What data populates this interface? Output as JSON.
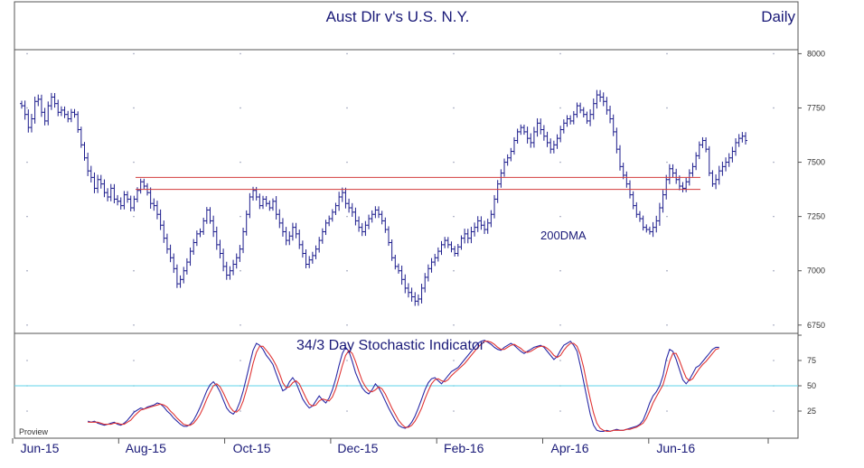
{
  "header": {
    "title": "Aust Dlr v's U.S. N.Y.",
    "period": "Daily"
  },
  "watermark": "Proview",
  "colors": {
    "frame": "#555555",
    "title_text": "#1a1a78",
    "bars": "#1c1c8c",
    "support_line": "#d23c3c",
    "stoch_k": "#2a2aa6",
    "stoch_d": "#e03535",
    "midline": "#5fd3e8",
    "tick_text": "#333333"
  },
  "chart_data": [
    {
      "type": "bar",
      "description_label": "Price (OHLC)",
      "x_tick_labels": [
        "Jun-15",
        "Aug-15",
        "Oct-15",
        "Dec-15",
        "Feb-16",
        "Apr-16",
        "Jun-16"
      ],
      "y_ticks": [
        6750,
        7000,
        7250,
        7500,
        7750,
        8000
      ],
      "ylim": [
        6720,
        8010
      ],
      "annotations": [
        {
          "text": "200DMA"
        }
      ],
      "horizontal_lines": [
        7430,
        7375
      ],
      "series": [
        {
          "values": [
            7760,
            7720,
            7660,
            7700,
            7780,
            7790,
            7730,
            7690,
            7760,
            7800,
            7770,
            7730,
            7740,
            7720,
            7700,
            7730,
            7720,
            7650,
            7580,
            7520,
            7460,
            7430,
            7380,
            7420,
            7400,
            7360,
            7340,
            7380,
            7330,
            7320,
            7300,
            7350,
            7330,
            7290,
            7330,
            7370,
            7410,
            7390,
            7360,
            7310,
            7300,
            7260,
            7210,
            7150,
            7100,
            7060,
            7010,
            6940,
            6960,
            7000,
            7040,
            7090,
            7130,
            7170,
            7180,
            7230,
            7280,
            7230,
            7180,
            7120,
            7080,
            7020,
            6980,
            7000,
            7030,
            7060,
            7100,
            7180,
            7260,
            7340,
            7370,
            7340,
            7300,
            7330,
            7310,
            7290,
            7320,
            7260,
            7220,
            7180,
            7140,
            7160,
            7200,
            7170,
            7120,
            7080,
            7030,
            7050,
            7070,
            7100,
            7140,
            7180,
            7220,
            7240,
            7270,
            7300,
            7340,
            7360,
            7310,
            7290,
            7270,
            7230,
            7200,
            7180,
            7210,
            7240,
            7260,
            7280,
            7260,
            7230,
            7190,
            7130,
            7060,
            7020,
            7000,
            6960,
            6920,
            6900,
            6880,
            6860,
            6870,
            6920,
            6970,
            7010,
            7040,
            7060,
            7090,
            7120,
            7140,
            7120,
            7100,
            7080,
            7110,
            7150,
            7170,
            7150,
            7180,
            7200,
            7230,
            7210,
            7190,
            7220,
            7260,
            7330,
            7400,
            7450,
            7500,
            7520,
            7550,
            7600,
            7640,
            7660,
            7640,
            7610,
            7590,
            7640,
            7680,
            7650,
            7620,
            7590,
            7560,
            7580,
            7610,
            7650,
            7680,
            7700,
            7690,
            7720,
            7760,
            7740,
            7720,
            7690,
            7720,
            7770,
            7810,
            7800,
            7780,
            7740,
            7700,
            7640,
            7560,
            7480,
            7440,
            7400,
            7350,
            7300,
            7260,
            7240,
            7200,
            7190,
            7180,
            7200,
            7230,
            7290,
            7350,
            7420,
            7470,
            7450,
            7420,
            7390,
            7380,
            7410,
            7450,
            7480,
            7530,
            7580,
            7600,
            7560,
            7450,
            7400,
            7420,
            7460,
            7480,
            7500,
            7520,
            7550,
            7590,
            7610,
            7620,
            7600
          ]
        }
      ]
    },
    {
      "type": "line",
      "title": "34/3 Day Stochastic Indicator",
      "y_ticks": [
        25,
        50,
        75
      ],
      "ylim": [
        0,
        100
      ],
      "reference_line": 50,
      "series": [
        {
          "values": [
            15,
            14,
            15,
            13,
            12,
            11,
            12,
            13,
            14,
            12,
            11,
            13,
            16,
            20,
            24,
            26,
            28,
            27,
            29,
            30,
            31,
            33,
            32,
            29,
            25,
            22,
            18,
            15,
            12,
            10,
            10,
            12,
            16,
            22,
            29,
            37,
            45,
            51,
            54,
            50,
            44,
            36,
            28,
            24,
            22,
            26,
            34,
            45,
            58,
            72,
            85,
            92,
            90,
            86,
            80,
            76,
            71,
            62,
            53,
            45,
            47,
            54,
            58,
            53,
            45,
            37,
            32,
            28,
            30,
            35,
            40,
            36,
            33,
            38,
            46,
            57,
            70,
            82,
            88,
            84,
            74,
            63,
            55,
            48,
            44,
            42,
            46,
            52,
            48,
            42,
            35,
            28,
            22,
            16,
            11,
            9,
            8,
            10,
            14,
            20,
            28,
            37,
            46,
            53,
            57,
            58,
            55,
            52,
            56,
            60,
            64,
            66,
            68,
            72,
            76,
            80,
            84,
            88,
            92,
            94,
            95,
            93,
            91,
            88,
            86,
            85,
            88,
            90,
            92,
            90,
            87,
            84,
            82,
            84,
            86,
            88,
            89,
            90,
            88,
            84,
            80,
            76,
            79,
            85,
            90,
            92,
            94,
            90,
            84,
            70,
            54,
            38,
            22,
            11,
            6,
            5,
            5,
            6,
            5,
            6,
            7,
            6,
            6,
            7,
            8,
            9,
            10,
            12,
            16,
            24,
            33,
            40,
            44,
            50,
            60,
            76,
            86,
            84,
            76,
            66,
            56,
            52,
            56,
            62,
            68,
            70,
            74,
            78,
            82,
            86,
            88,
            88
          ],
          "start_index": 20
        },
        {
          "values": [
            14,
            14,
            14,
            14,
            13,
            12,
            12,
            12,
            13,
            13,
            12,
            12,
            14,
            16,
            20,
            23,
            26,
            27,
            28,
            29,
            30,
            31,
            32,
            31,
            29,
            25,
            22,
            18,
            15,
            12,
            11,
            11,
            13,
            17,
            22,
            29,
            37,
            44,
            50,
            52,
            49,
            43,
            36,
            29,
            25,
            24,
            27,
            35,
            46,
            58,
            72,
            83,
            89,
            89,
            85,
            81,
            76,
            70,
            62,
            53,
            48,
            49,
            53,
            55,
            52,
            45,
            38,
            32,
            30,
            31,
            35,
            37,
            36,
            35,
            39,
            47,
            58,
            70,
            80,
            85,
            82,
            74,
            64,
            55,
            49,
            45,
            44,
            46,
            49,
            47,
            42,
            35,
            28,
            22,
            16,
            12,
            9,
            9,
            11,
            15,
            21,
            28,
            37,
            45,
            52,
            56,
            57,
            55,
            54,
            56,
            60,
            63,
            66,
            69,
            72,
            76,
            80,
            84,
            88,
            91,
            94,
            94,
            93,
            91,
            88,
            86,
            86,
            88,
            90,
            91,
            89,
            87,
            84,
            83,
            84,
            86,
            88,
            89,
            89,
            87,
            84,
            80,
            78,
            80,
            85,
            89,
            92,
            92,
            89,
            81,
            68,
            52,
            37,
            23,
            13,
            8,
            6,
            5,
            5,
            6,
            6,
            6,
            6,
            7,
            7,
            8,
            9,
            11,
            13,
            18,
            25,
            33,
            39,
            45,
            51,
            62,
            74,
            82,
            82,
            75,
            66,
            58,
            55,
            57,
            62,
            67,
            71,
            74,
            78,
            82,
            86,
            87
          ],
          "start_index": 20
        }
      ]
    }
  ]
}
